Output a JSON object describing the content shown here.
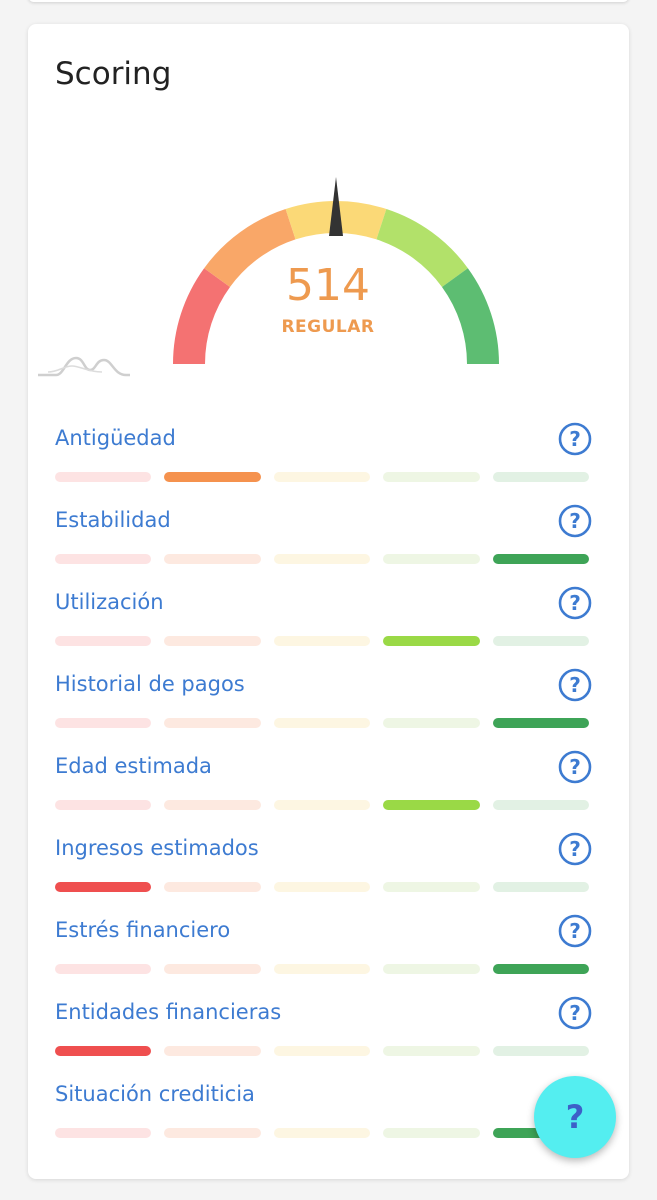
{
  "scoring": {
    "title": "Scoring",
    "score_value": "514",
    "score_label": "REGULAR",
    "score_color": "#ee9a4f",
    "gauge_segment_colors": [
      "#f47272",
      "#f9a768",
      "#fbd977",
      "#b2e16a",
      "#5dbd72"
    ]
  },
  "factor_level_colors": {
    "active": [
      "#ef4f4f",
      "#f5924e",
      "#f6cd58",
      "#9ad946",
      "#3ea457"
    ],
    "inactive": [
      "#fde3e3",
      "#fde9e0",
      "#fdf6e2",
      "#eef6e4",
      "#e2f1e4"
    ]
  },
  "factors": [
    {
      "label": "Antigüedad",
      "level": 2,
      "help_icon": "question-circle-icon"
    },
    {
      "label": "Estabilidad",
      "level": 5,
      "help_icon": "question-circle-icon"
    },
    {
      "label": "Utilización",
      "level": 4,
      "help_icon": "question-circle-icon"
    },
    {
      "label": "Historial de pagos",
      "level": 5,
      "help_icon": "question-circle-icon"
    },
    {
      "label": "Edad estimada",
      "level": 4,
      "help_icon": "question-circle-icon"
    },
    {
      "label": "Ingresos estimados",
      "level": 1,
      "help_icon": "question-circle-icon"
    },
    {
      "label": "Estrés financiero",
      "level": 5,
      "help_icon": "question-circle-icon"
    },
    {
      "label": "Entidades financieras",
      "level": 1,
      "help_icon": "question-circle-icon"
    },
    {
      "label": "Situación crediticia",
      "level": 5,
      "help_icon": null
    }
  ],
  "fab": {
    "label": "?",
    "icon": "help-icon"
  }
}
